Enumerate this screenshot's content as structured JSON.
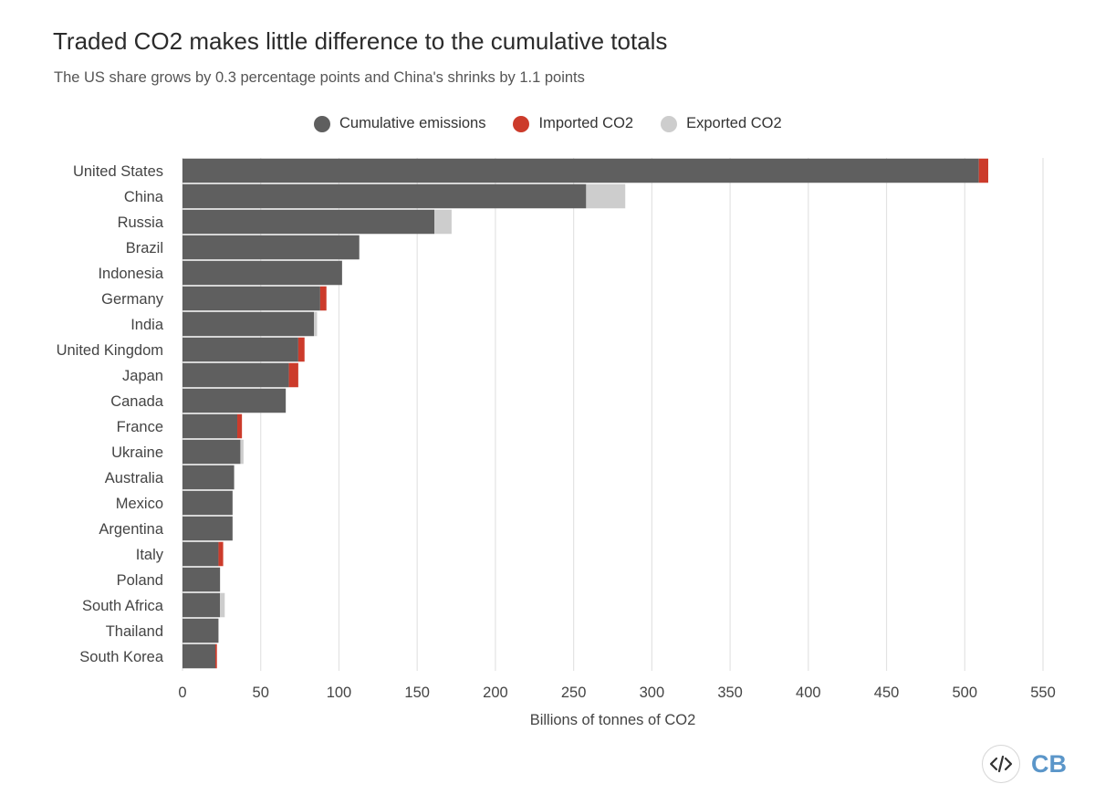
{
  "chart_data": {
    "type": "bar",
    "orientation": "horizontal",
    "stacked": true,
    "title": "Traded CO2 makes little difference to the cumulative totals",
    "subtitle": "The US share grows by 0.3 percentage points and China's shrinks by 1.1 points",
    "xlabel": "Billions of tonnes of CO2",
    "xlim": [
      0,
      550
    ],
    "xticks": [
      0,
      50,
      100,
      150,
      200,
      250,
      300,
      350,
      400,
      450,
      500,
      550
    ],
    "grid": true,
    "legend_position": "top-center",
    "categories": [
      "United States",
      "China",
      "Russia",
      "Brazil",
      "Indonesia",
      "Germany",
      "India",
      "United Kingdom",
      "Japan",
      "Canada",
      "France",
      "Ukraine",
      "Australia",
      "Mexico",
      "Argentina",
      "Italy",
      "Poland",
      "South Africa",
      "Thailand",
      "South Korea"
    ],
    "series": [
      {
        "name": "Cumulative emissions",
        "color": "#5f5f5f",
        "values": [
          509,
          258,
          161,
          113,
          102,
          88,
          84,
          74,
          68,
          66,
          35,
          37,
          33,
          32,
          32,
          23,
          24,
          24,
          23,
          21
        ]
      },
      {
        "name": "Imported CO2",
        "color": "#cc3b2b",
        "values": [
          6,
          0,
          0,
          0,
          0,
          4,
          0,
          4,
          6,
          0,
          3,
          0,
          0,
          0,
          0,
          3,
          0,
          0,
          0,
          1
        ]
      },
      {
        "name": "Exported CO2",
        "color": "#cdcdcd",
        "values": [
          0,
          25,
          11,
          0,
          0,
          0,
          2,
          0,
          0,
          0,
          0,
          2,
          0,
          0,
          0,
          0,
          0,
          3,
          0,
          0
        ]
      }
    ]
  },
  "logo": {
    "text": "CB",
    "icon": "code-icon"
  }
}
